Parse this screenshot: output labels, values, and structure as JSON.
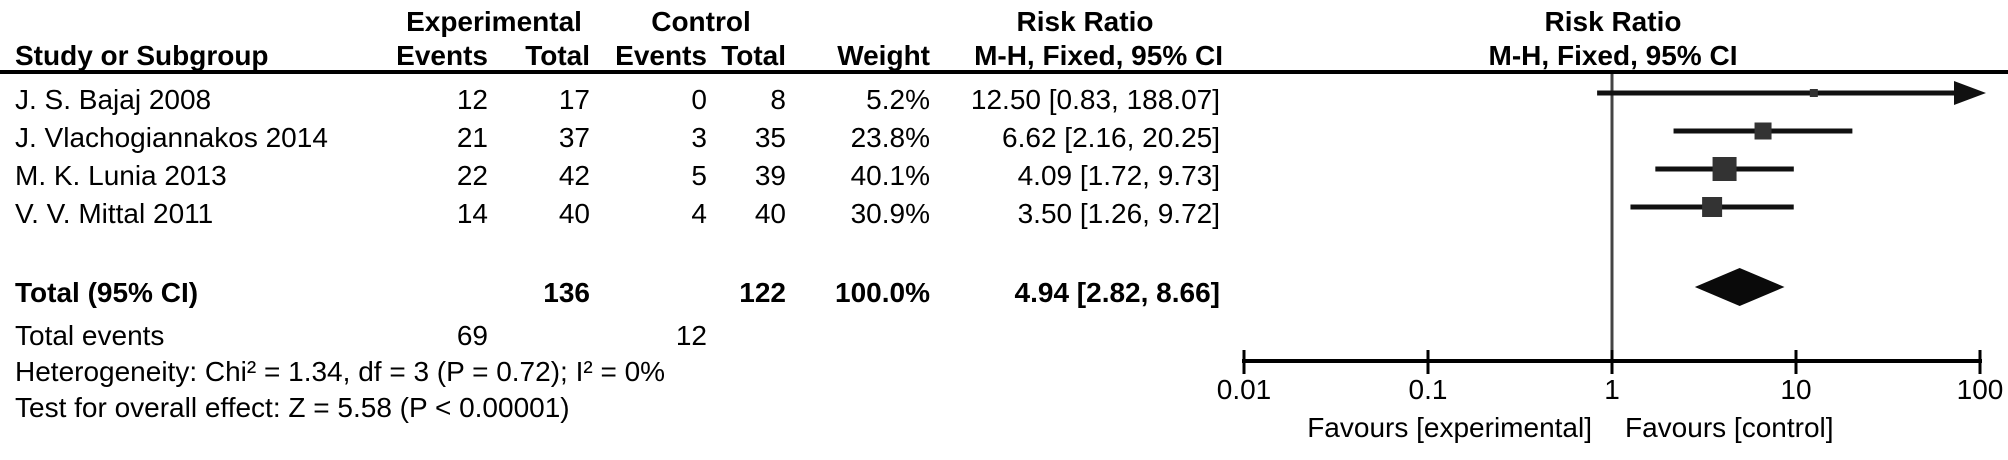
{
  "figure": {
    "header": {
      "study_col": "Study or Subgroup",
      "group_experimental": "Experimental",
      "group_control": "Control",
      "exp_events": "Events",
      "exp_total": "Total",
      "ctrl_events": "Events",
      "ctrl_total": "Total",
      "weight": "Weight",
      "rr_text_line1": "Risk Ratio",
      "rr_text_line2": "M-H, Fixed, 95% CI",
      "rr_plot_line1": "Risk Ratio",
      "rr_plot_line2": "M-H, Fixed, 95% CI"
    },
    "rows": [
      {
        "study": "J. S. Bajaj 2008",
        "exp_events": "12",
        "exp_total": "17",
        "ctrl_events": "0",
        "ctrl_total": "8",
        "weight": "5.2%",
        "rr_ci": "12.50 [0.83, 188.07]"
      },
      {
        "study": "J. Vlachogiannakos 2014",
        "exp_events": "21",
        "exp_total": "37",
        "ctrl_events": "3",
        "ctrl_total": "35",
        "weight": "23.8%",
        "rr_ci": "6.62 [2.16, 20.25]"
      },
      {
        "study": "M. K. Lunia 2013",
        "exp_events": "22",
        "exp_total": "42",
        "ctrl_events": "5",
        "ctrl_total": "39",
        "weight": "40.1%",
        "rr_ci": "4.09 [1.72, 9.73]"
      },
      {
        "study": "V. V. Mittal 2011",
        "exp_events": "14",
        "exp_total": "40",
        "ctrl_events": "4",
        "ctrl_total": "40",
        "weight": "30.9%",
        "rr_ci": "3.50 [1.26, 9.72]"
      }
    ],
    "total_row": {
      "label": "Total (95% CI)",
      "exp_total": "136",
      "ctrl_total": "122",
      "weight": "100.0%",
      "rr_ci": "4.94 [2.82, 8.66]"
    },
    "total_events": {
      "label": "Total events",
      "exp": "69",
      "ctrl": "12"
    },
    "heterogeneity": "Heterogeneity: Chi² = 1.34, df = 3 (P = 0.72); I² = 0%",
    "overall_effect": "Test for overall effect: Z = 5.58 (P < 0.00001)",
    "axis": {
      "tick_labels": [
        "0.01",
        "0.1",
        "1",
        "10",
        "100"
      ],
      "favours_left": "Favours [experimental]",
      "favours_right": "Favours [control]"
    },
    "colors": {
      "text": "#000000",
      "line": "#111111",
      "marker": "#333333",
      "diamond": "#0a0a0a",
      "axis": "#000000",
      "vline": "#444444"
    }
  },
  "chart_data": {
    "type": "forest",
    "effect_measure": "Risk Ratio",
    "method": "M-H, Fixed, 95% CI",
    "x_scale": "log10",
    "xlim": [
      0.01,
      100
    ],
    "ticks": [
      0.01,
      0.1,
      1,
      10,
      100
    ],
    "null_line": 1,
    "studies": [
      {
        "name": "J. S. Bajaj 2008",
        "rr": 12.5,
        "ci_low": 0.83,
        "ci_high": 188.07,
        "weight_pct": 5.2,
        "exp_events": 12,
        "exp_total": 17,
        "ctrl_events": 0,
        "ctrl_total": 8
      },
      {
        "name": "J. Vlachogiannakos 2014",
        "rr": 6.62,
        "ci_low": 2.16,
        "ci_high": 20.25,
        "weight_pct": 23.8,
        "exp_events": 21,
        "exp_total": 37,
        "ctrl_events": 3,
        "ctrl_total": 35
      },
      {
        "name": "M. K. Lunia 2013",
        "rr": 4.09,
        "ci_low": 1.72,
        "ci_high": 9.73,
        "weight_pct": 40.1,
        "exp_events": 22,
        "exp_total": 42,
        "ctrl_events": 5,
        "ctrl_total": 39
      },
      {
        "name": "V. V. Mittal 2011",
        "rr": 3.5,
        "ci_low": 1.26,
        "ci_high": 9.72,
        "weight_pct": 30.9,
        "exp_events": 14,
        "exp_total": 40,
        "ctrl_events": 4,
        "ctrl_total": 40
      }
    ],
    "summary": {
      "name": "Total (95% CI)",
      "rr": 4.94,
      "ci_low": 2.82,
      "ci_high": 8.66,
      "weight_pct": 100.0,
      "exp_total": 136,
      "ctrl_total": 122
    },
    "total_events": {
      "experimental": 69,
      "control": 12
    },
    "heterogeneity": {
      "chi2": 1.34,
      "df": 3,
      "p": 0.72,
      "i2_pct": 0
    },
    "overall_effect": {
      "z": 5.58,
      "p": "< 0.00001"
    }
  }
}
